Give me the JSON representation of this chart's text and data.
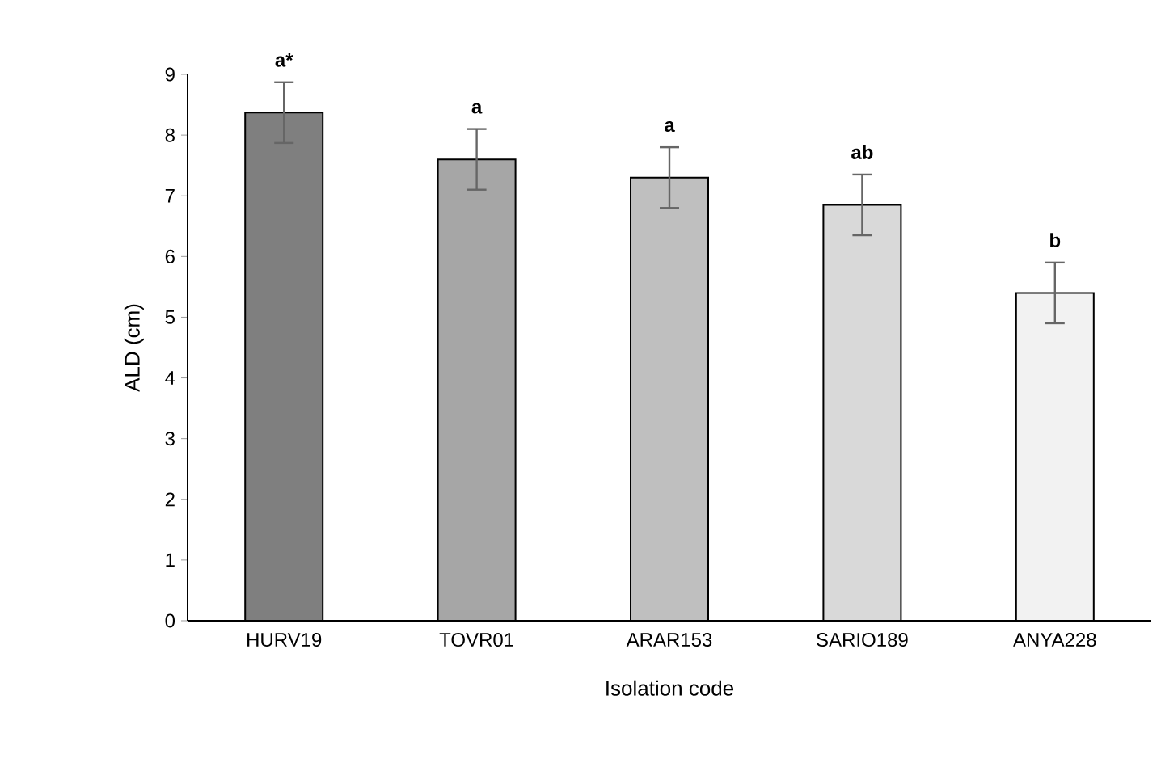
{
  "chart_data": {
    "type": "bar",
    "xlabel": "Isolation code",
    "ylabel": "ALD (cm)",
    "categories": [
      "HURV19",
      "TOVR01",
      "ARAR153",
      "SARIO189",
      "ANYA228"
    ],
    "values": [
      8.37,
      7.6,
      7.3,
      6.85,
      5.4
    ],
    "errors": [
      0.5,
      0.5,
      0.5,
      0.5,
      0.5
    ],
    "colors": [
      "#7f7f7f",
      "#a6a6a6",
      "#bfbfbf",
      "#d9d9d9",
      "#f2f2f2"
    ],
    "ylim": [
      0,
      9
    ],
    "yticks": [
      0,
      1,
      2,
      3,
      4,
      5,
      6,
      7,
      8,
      9
    ],
    "grid": false,
    "annotations": [
      {
        "text": "a*",
        "x": "HURV19",
        "y": 8.87
      },
      {
        "text": "a",
        "x": "TOVR01",
        "y": 8.1
      },
      {
        "text": "a",
        "x": "ARAR153",
        "y": 7.8
      },
      {
        "text": "ab",
        "x": "SARIO189",
        "y": 7.35
      },
      {
        "text": "b",
        "x": "ANYA228",
        "y": 5.9
      }
    ]
  }
}
